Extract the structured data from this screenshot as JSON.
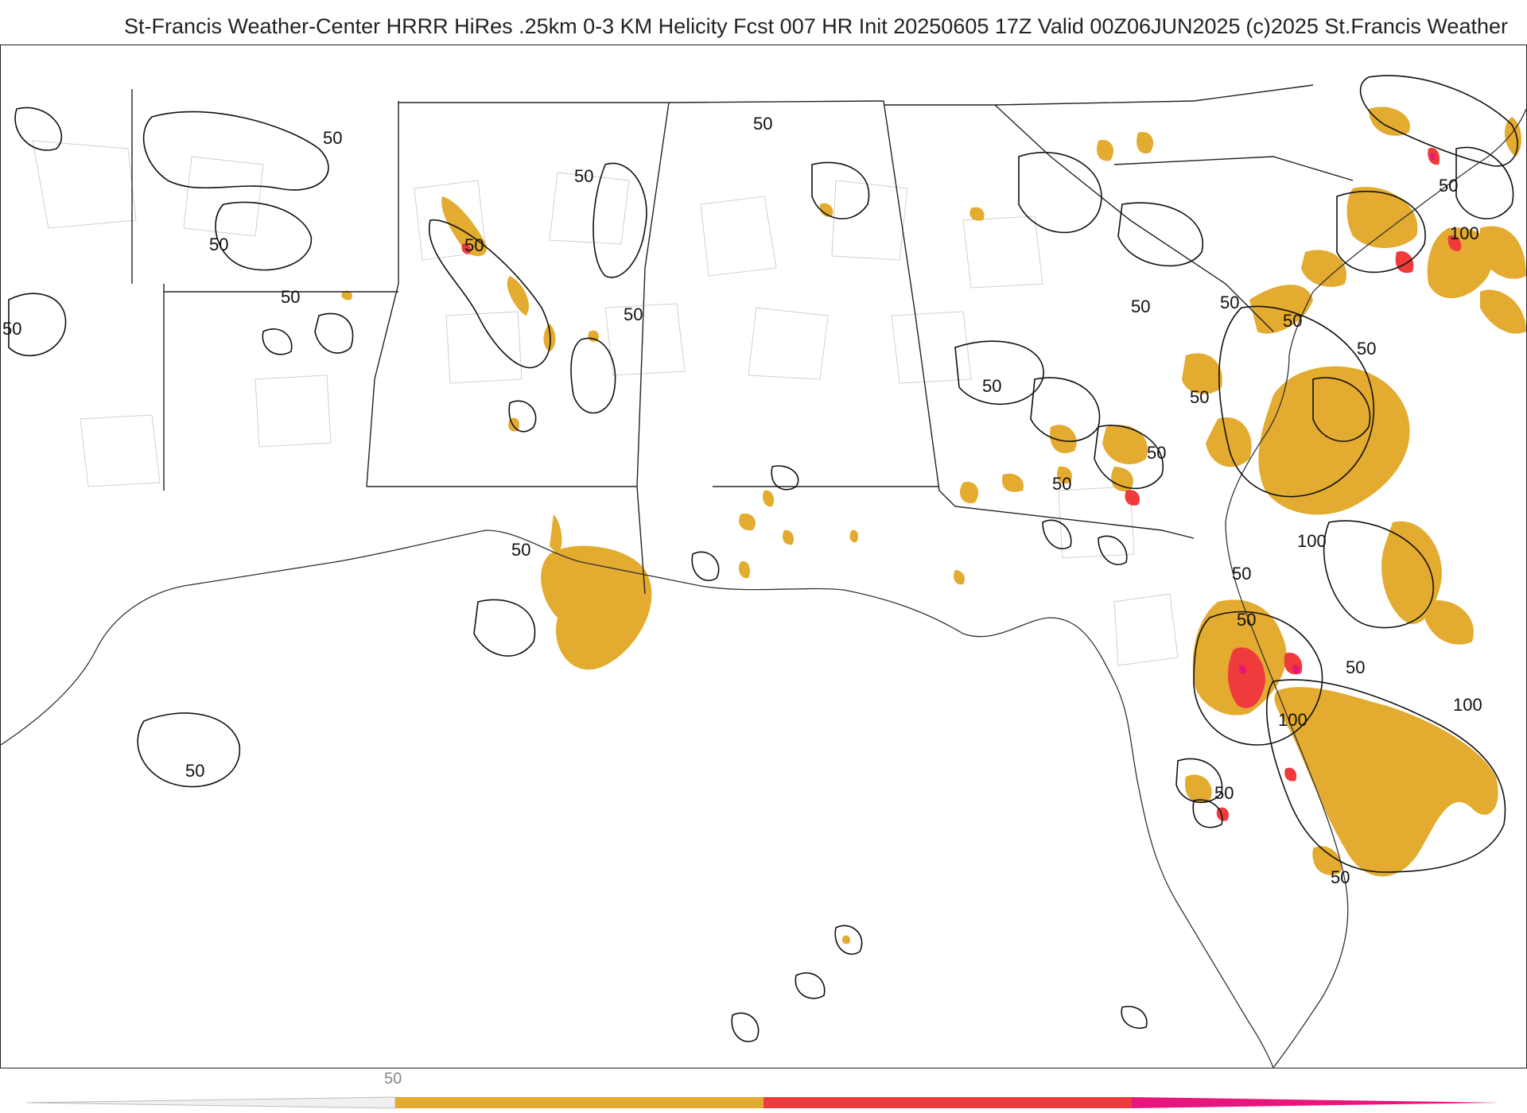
{
  "header": {
    "title": "St-Francis Weather-Center HRRR HiRes .25km 0-3 KM Helicity Fcst 007 HR Init 20250605 17Z  Valid 00Z06JUN2025",
    "copyright": "(c)2025 St.Francis Weather"
  },
  "map": {
    "contour_labels": [
      {
        "text": "50",
        "id": "oklahoma-north"
      },
      {
        "text": "50",
        "id": "arkansas-north"
      },
      {
        "text": "50",
        "id": "tennessee-north"
      },
      {
        "text": "50",
        "id": "texas-east"
      },
      {
        "text": "50",
        "id": "arkansas-west"
      },
      {
        "text": "50",
        "id": "texas-west-edge"
      },
      {
        "text": "50",
        "id": "mississippi-north"
      },
      {
        "text": "50",
        "id": "mississippi-east"
      },
      {
        "text": "50",
        "id": "mississippi-south"
      },
      {
        "text": "50",
        "id": "gulf-west"
      },
      {
        "text": "50",
        "id": "north-carolina-east"
      },
      {
        "text": "50",
        "id": "north-carolina-central"
      },
      {
        "text": "50",
        "id": "virginia-coast"
      },
      {
        "text": "100",
        "id": "virginia-offshore"
      },
      {
        "text": "50",
        "id": "carolina-coast"
      },
      {
        "text": "50",
        "id": "atlantic-north"
      },
      {
        "text": "50",
        "id": "georgia-north"
      },
      {
        "text": "50",
        "id": "south-carolina"
      },
      {
        "text": "50",
        "id": "georgia-central"
      },
      {
        "text": "50",
        "id": "georgia-east"
      },
      {
        "text": "100",
        "id": "atlantic-georgia"
      },
      {
        "text": "50",
        "id": "georgia-coast"
      },
      {
        "text": "50",
        "id": "florida-northeast"
      },
      {
        "text": "50",
        "id": "atlantic-florida"
      },
      {
        "text": "100",
        "id": "florida-east-coast"
      },
      {
        "text": "100",
        "id": "atlantic-far"
      },
      {
        "text": "50",
        "id": "florida-central"
      },
      {
        "text": "50",
        "id": "florida-south"
      }
    ],
    "colors": {
      "fill_low": "#e3ab2f",
      "fill_mid": "#ef3b3b",
      "fill_high": "#e8167c",
      "contour": "#111111",
      "state_border": "#222222",
      "county_border": "#c8c8c8"
    }
  },
  "legend": {
    "tick_label": "50",
    "colors": [
      "#e3ab2f",
      "#ef3b3b",
      "#e8167c"
    ]
  }
}
